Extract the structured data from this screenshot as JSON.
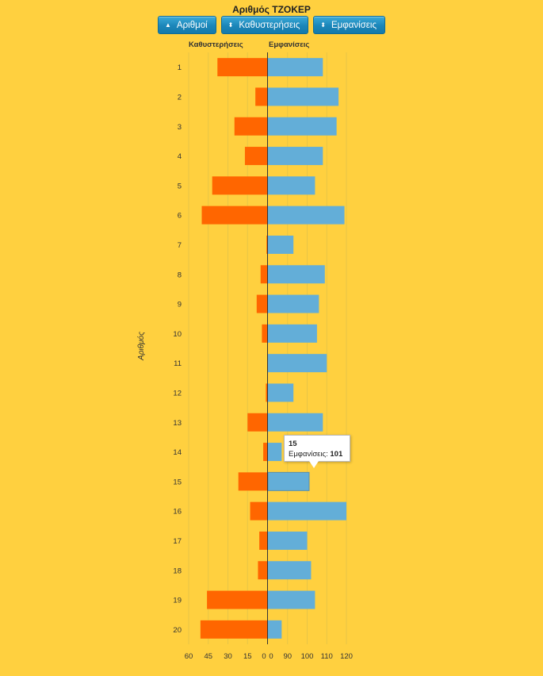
{
  "title": "Αριθμός ΤΖΟΚΕΡ",
  "buttons": {
    "sort_numbers": "Αριθμοί",
    "sort_delays": "Καθυστερήσεις",
    "sort_appearances": "Εμφανίσεις"
  },
  "icons": {
    "sort_numbers": "caret-up-icon",
    "sort_delays": "sort-updown-icon",
    "sort_appearances": "sort-updown-icon"
  },
  "colors": {
    "background": "#ffd03f",
    "delays": "#ff6600",
    "appearances": "#63aed8",
    "button": "#1b86b9"
  },
  "tooltip": {
    "title": "15",
    "label": "Εμφανίσεις:",
    "value": "101"
  },
  "chart_data": {
    "type": "bar",
    "orientation": "horizontal",
    "ylabel": "Αριθμός",
    "categories": [
      "1",
      "2",
      "3",
      "4",
      "5",
      "6",
      "7",
      "8",
      "9",
      "10",
      "11",
      "12",
      "13",
      "14",
      "15",
      "16",
      "17",
      "18",
      "19",
      "20"
    ],
    "series": [
      {
        "name": "Καθυστερήσεις",
        "color": "#ff6600",
        "values": [
          38,
          9,
          25,
          17,
          42,
          50,
          0.5,
          5,
          8,
          4,
          0,
          1,
          15,
          3,
          22,
          13,
          6,
          7,
          46,
          51
        ],
        "xlim": [
          0,
          60
        ],
        "xticks": [
          "60",
          "45",
          "30",
          "15",
          "0"
        ],
        "direction": "left"
      },
      {
        "name": "Εμφανίσεις",
        "color": "#63aed8",
        "values": [
          108,
          116,
          115,
          108,
          104,
          119,
          93,
          109,
          106,
          105,
          110,
          93,
          108,
          87,
          101,
          120,
          100,
          102,
          104,
          87
        ],
        "xlim": [
          80,
          120
        ],
        "xticks": [
          "0",
          "90",
          "100",
          "110",
          "120"
        ],
        "direction": "right"
      }
    ],
    "grid": true,
    "legend": "none"
  }
}
